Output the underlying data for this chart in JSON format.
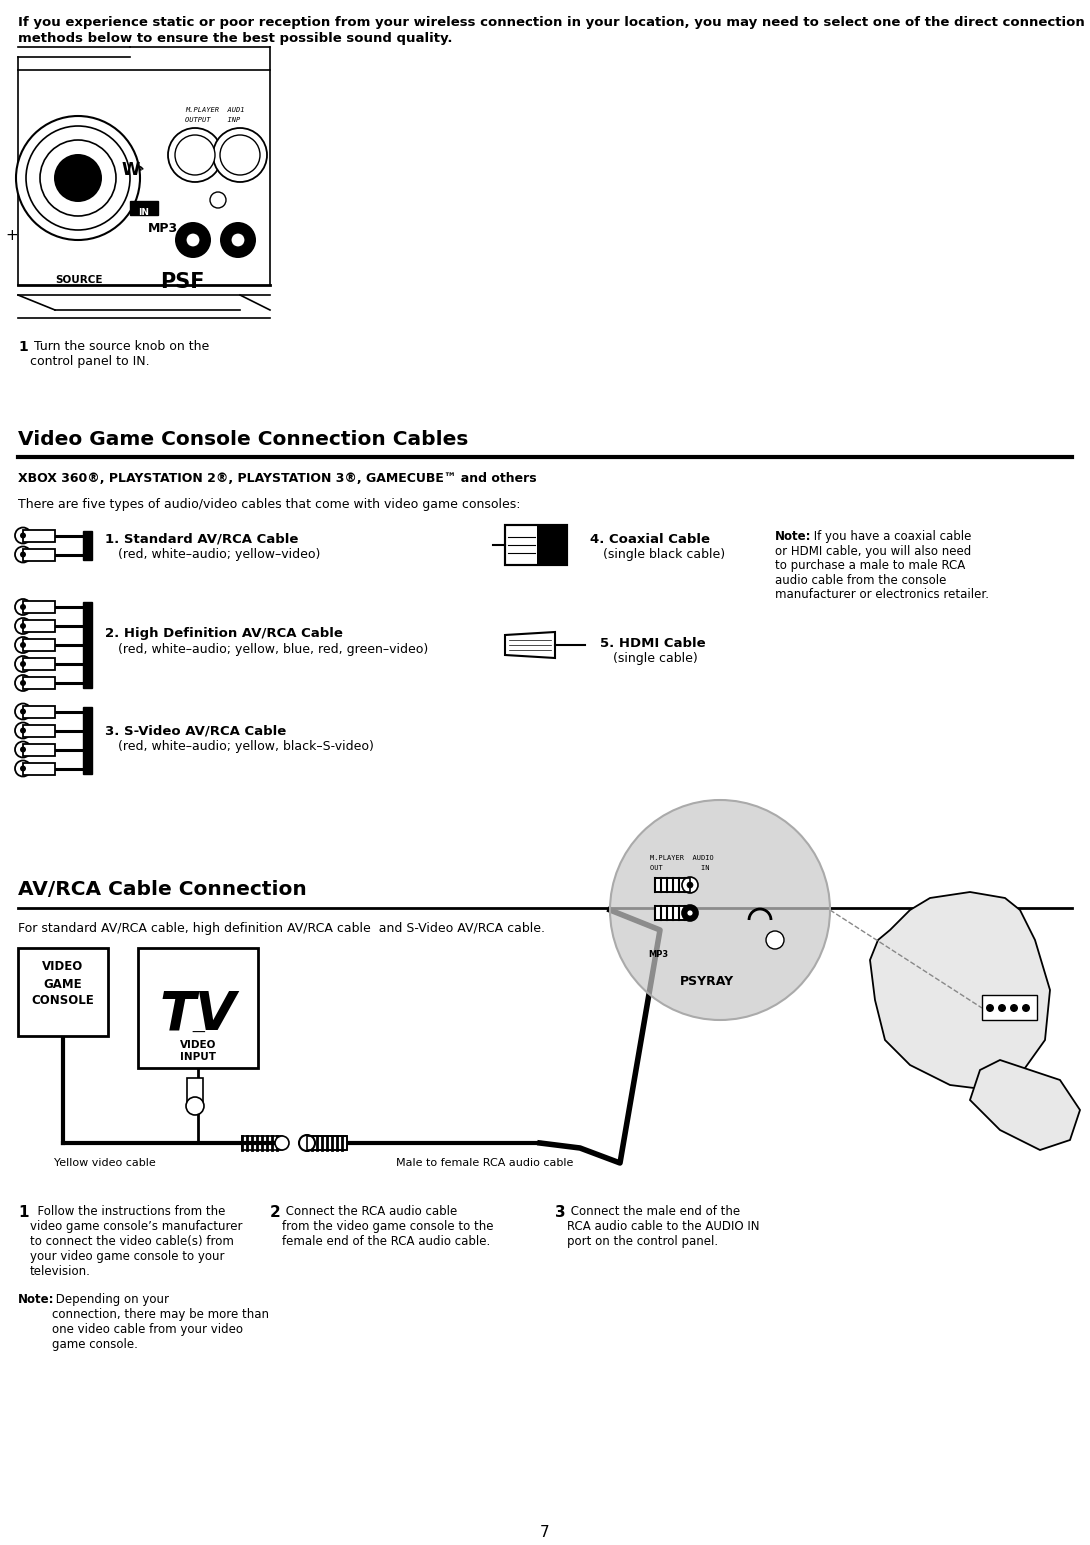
{
  "bg_color": "#ffffff",
  "page_width": 10.9,
  "page_height": 15.45,
  "top_line1": "If you experience static or poor reception from your wireless connection in your location, you may need to select one of the direct connection",
  "top_line2": "methods below to ensure the best possible sound quality.",
  "section1_title": "Video Game Console Connection Cables",
  "section1_subtitle": "XBOX 360®, PLAYSTATION 2®, PLAYSTATION 3®, GAMECUBE™ and others",
  "section1_intro": "There are five types of audio/video cables that come with video game consoles:",
  "c1_num": "1.",
  "c1_name": "Standard AV/RCA Cable",
  "c1_desc": "(red, white–audio; yellow–video)",
  "c2_num": "2.",
  "c2_name": "High Definition AV/RCA Cable",
  "c2_desc": "(red, white–audio; yellow, blue, red, green–video)",
  "c3_num": "3.",
  "c3_name": "S-Video AV/RCA Cable",
  "c3_desc": "(red, white–audio; yellow, black–S-video)",
  "c4_num": "4.",
  "c4_name": "Coaxial Cable",
  "c4_desc": "(single black cable)",
  "c5_num": "5.",
  "c5_name": "HDMI Cable",
  "c5_desc": "(single cable)",
  "note_bold": "Note:",
  "note_rest": " If you have a coaxial cable or HDMI cable, you will also need to purchase a male to male RCA audio cable from the console manufacturer or electronics retailer.",
  "ctrl_step_num": "1",
  "ctrl_step_text": " Turn the source knob on the\ncontrol panel to IN.",
  "section2_title": "AV/RCA Cable Connection",
  "section2_subtitle": "For standard AV/RCA cable, high definition AV/RCA cable  and S-Video AV/RCA cable.",
  "label_yellow": "Yellow video cable",
  "label_male": "Male to female RCA audio cable",
  "label_vgc": "VIDEO\nGAME\nCONSOLE",
  "label_tv": "VIDEO\nINPUT",
  "s1_num": "1",
  "s1_text": "  Follow the instructions from the\nvideo game console’s manufacturer\nto connect the video cable(s) from\nyour video game console to your\ntelevision.",
  "s1_note_bold": "Note:",
  "s1_note_rest": " Depending on your\nconnection, there may be more than\none video cable from your video\ngame console.",
  "s2_num": "2",
  "s2_text": " Connect the RCA audio cable\nfrom the video game console to the\nfemale end of the RCA audio cable.",
  "s3_num": "3",
  "s3_text": " Connect the male end of the\nRCA audio cable to the AUDIO IN\nport on the control panel.",
  "page_num": "7",
  "gray_circle_color": "#c8c8c8",
  "chair_body_color": "#e8e8e8"
}
